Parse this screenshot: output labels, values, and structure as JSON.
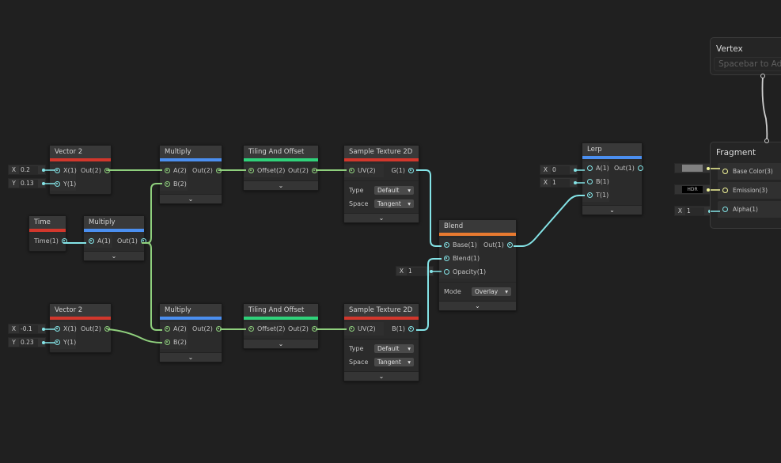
{
  "colors": {
    "vector2": "#8fd07d",
    "float": "#84e4e7",
    "vector3": "#f4f79a",
    "input_bar": "#d2372c",
    "math_bar": "#4b8ff0",
    "uv_bar": "#2fd27a",
    "texture_bar": "#d2372c",
    "blend_bar": "#e87a30",
    "white": "#cfcfcf"
  },
  "nodes": {
    "vec2_top": {
      "title": "Vector 2",
      "inputs": [
        "X(1)",
        "Y(1)"
      ],
      "outputs": [
        "Out(2)"
      ]
    },
    "mul_top": {
      "title": "Multiply",
      "inputs": [
        "A(2)",
        "B(2)"
      ],
      "outputs": [
        "Out(2)"
      ],
      "chevron": "⌄"
    },
    "time": {
      "title": "Time",
      "inputs": [],
      "outputs": [
        "Time(1)"
      ]
    },
    "mul_time": {
      "title": "Multiply",
      "inputs": [
        "A(1)"
      ],
      "outputs": [
        "Out(1)"
      ],
      "chevron": "⌄"
    },
    "tile_top": {
      "title": "Tiling And Offset",
      "inputs": [
        "Offset(2)"
      ],
      "outputs": [
        "Out(2)"
      ],
      "chevron": "⌄"
    },
    "tex_top": {
      "title": "Sample Texture 2D",
      "inputs": [
        "UV(2)"
      ],
      "outputs": [
        "G(1)"
      ],
      "props": [
        {
          "label": "Type",
          "value": "Default"
        },
        {
          "label": "Space",
          "value": "Tangent"
        }
      ],
      "chevron": "⌄"
    },
    "blend": {
      "title": "Blend",
      "inputs": [
        "Base(1)",
        "Blend(1)",
        "Opacity(1)"
      ],
      "outputs": [
        "Out(1)"
      ],
      "props": [
        {
          "label": "Mode",
          "value": "Overlay"
        }
      ],
      "chevron": "⌄"
    },
    "lerp": {
      "title": "Lerp",
      "inputs": [
        "A(1)",
        "B(1)",
        "T(1)"
      ],
      "outputs": [
        "Out(1)"
      ],
      "chevron": "⌄"
    },
    "vec2_bot": {
      "title": "Vector 2",
      "inputs": [
        "X(1)",
        "Y(1)"
      ],
      "outputs": [
        "Out(2)"
      ]
    },
    "mul_bot": {
      "title": "Multiply",
      "inputs": [
        "A(2)",
        "B(2)"
      ],
      "outputs": [
        "Out(2)"
      ],
      "chevron": "⌄"
    },
    "tile_bot": {
      "title": "Tiling And Offset",
      "inputs": [
        "Offset(2)"
      ],
      "outputs": [
        "Out(2)"
      ],
      "chevron": "⌄"
    },
    "tex_bot": {
      "title": "Sample Texture 2D",
      "inputs": [
        "UV(2)"
      ],
      "outputs": [
        "B(1)"
      ],
      "props": [
        {
          "label": "Type",
          "value": "Default"
        },
        {
          "label": "Space",
          "value": "Tangent"
        }
      ],
      "chevron": "⌄"
    }
  },
  "fields": {
    "vec2_top_x": {
      "label": "X",
      "value": "0.2"
    },
    "vec2_top_y": {
      "label": "Y",
      "value": "0.13"
    },
    "vec2_bot_x": {
      "label": "X",
      "value": "-0.1"
    },
    "vec2_bot_y": {
      "label": "Y",
      "value": "0.23"
    },
    "blend_opacity": {
      "label": "X",
      "value": "1"
    },
    "lerp_a": {
      "label": "X",
      "value": "0"
    },
    "lerp_b": {
      "label": "X",
      "value": "1"
    },
    "alpha": {
      "label": "X",
      "value": "1"
    }
  },
  "master": {
    "vertex": {
      "title": "Vertex",
      "placeholder": "Spacebar to Add Block"
    },
    "fragment": {
      "title": "Fragment",
      "blocks": [
        "Base Color(3)",
        "Emission(3)",
        "Alpha(1)"
      ],
      "base_color_swatch": "#808080",
      "emission_label": "HDR"
    }
  }
}
